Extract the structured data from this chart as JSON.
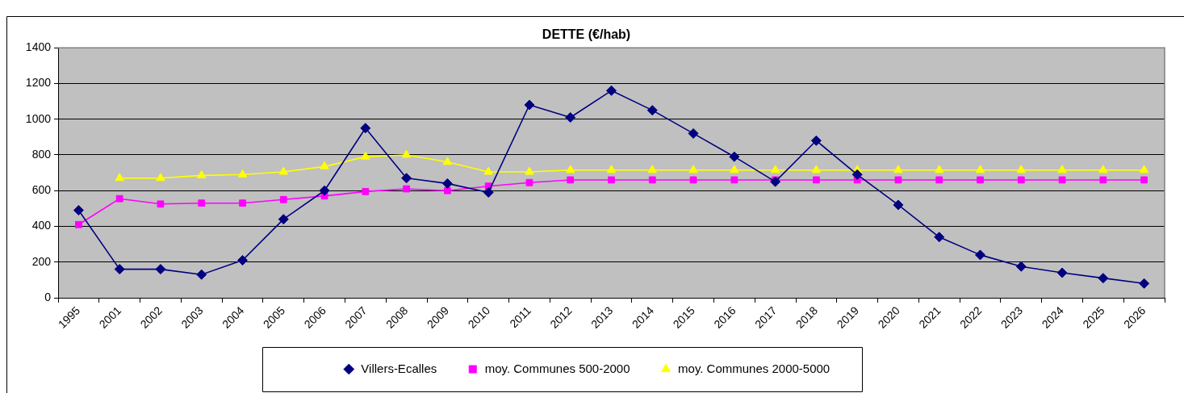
{
  "chart_data": {
    "type": "line",
    "title": "DETTE (€/hab)",
    "categories": [
      "1995",
      "2001",
      "2002",
      "2003",
      "2004",
      "2005",
      "2006",
      "2007",
      "2008",
      "2009",
      "2010",
      "2011",
      "2012",
      "2013",
      "2014",
      "2015",
      "2016",
      "2017",
      "2018",
      "2019",
      "2020",
      "2021",
      "2022",
      "2023",
      "2024",
      "2025",
      "2026"
    ],
    "series": [
      {
        "name": "Villers-Ecalles",
        "color": "#000080",
        "marker": "diamond",
        "values": [
          490,
          160,
          160,
          130,
          210,
          440,
          600,
          950,
          670,
          640,
          590,
          1080,
          1010,
          1160,
          1050,
          920,
          790,
          650,
          880,
          690,
          520,
          340,
          240,
          175,
          140,
          110,
          80
        ]
      },
      {
        "name": "moy. Communes 500-2000",
        "color": "#ff00ff",
        "marker": "square",
        "values": [
          410,
          555,
          525,
          530,
          530,
          550,
          570,
          595,
          610,
          600,
          625,
          645,
          660,
          660,
          660,
          660,
          660,
          660,
          660,
          660,
          660,
          660,
          660,
          660,
          660,
          660,
          660
        ]
      },
      {
        "name": "moy. Communes 2000-5000",
        "color": "#ffff00",
        "marker": "triangle",
        "values": [
          null,
          670,
          670,
          685,
          690,
          705,
          735,
          790,
          800,
          760,
          705,
          705,
          715,
          715,
          715,
          715,
          715,
          715,
          715,
          715,
          715,
          715,
          715,
          715,
          715,
          715,
          715
        ]
      }
    ],
    "ylim": [
      0,
      1400
    ],
    "yticks": [
      0,
      200,
      400,
      600,
      800,
      1000,
      1200,
      1400
    ],
    "grid": "y",
    "legend": "bottom",
    "line_style": "solid"
  }
}
